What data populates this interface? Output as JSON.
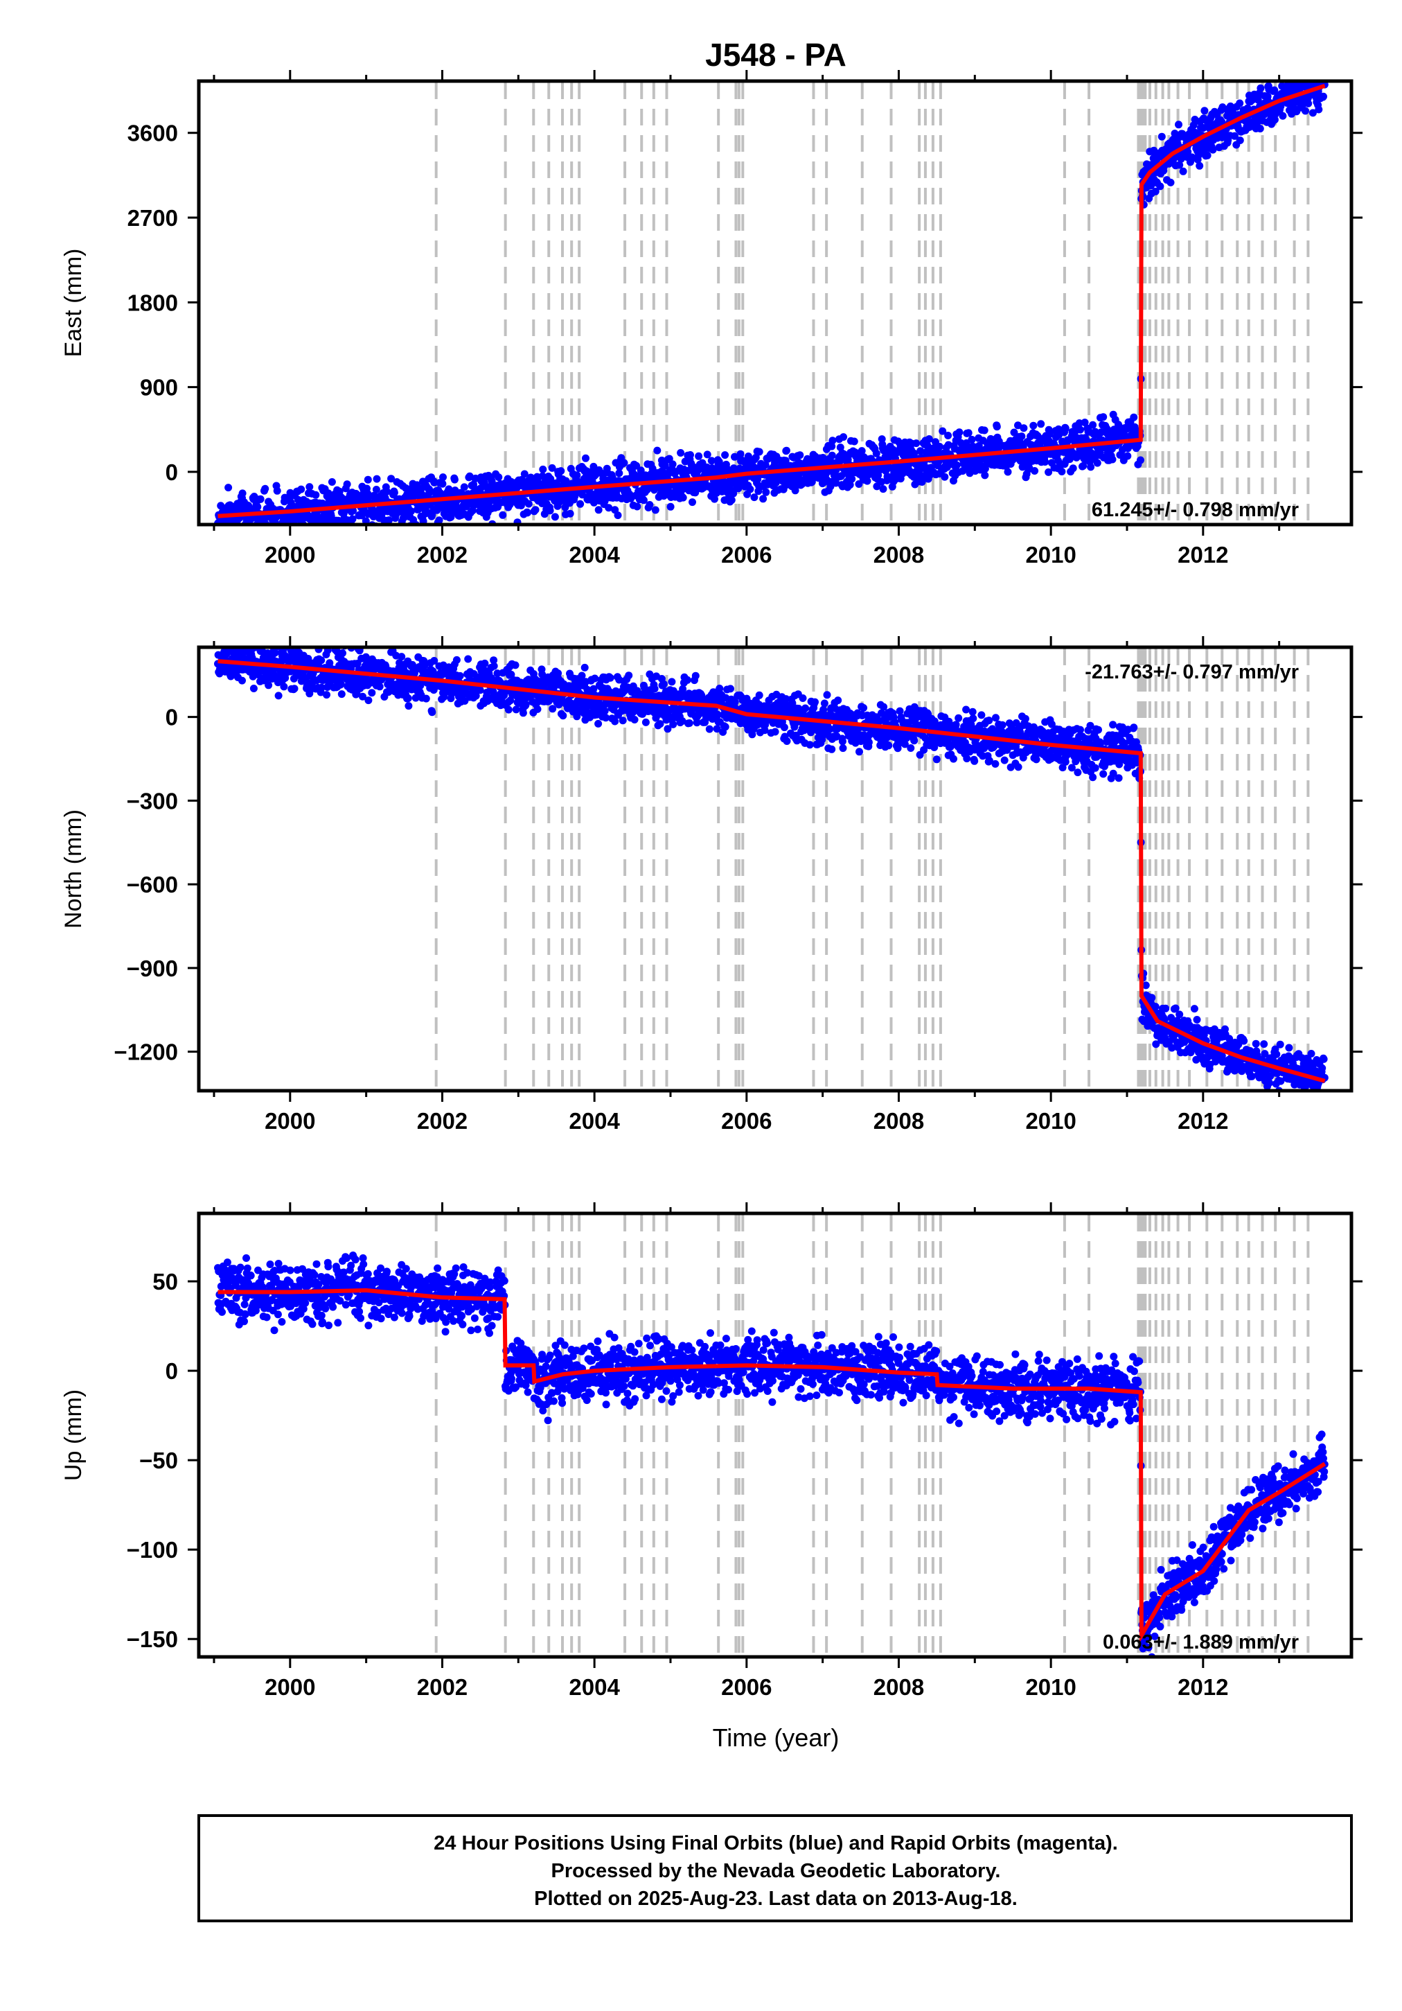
{
  "title": "J548 - PA",
  "xlabel": "Time (year)",
  "footer": [
    "24 Hour Positions Using Final Orbits (blue) and Rapid Orbits (magenta).",
    "Processed by the Nevada Geodetic Laboratory.",
    "Plotted on 2025-Aug-23. Last data on 2013-Aug-18."
  ],
  "colors": {
    "final_orbits": "#0000ff",
    "rapid_orbits": "#ff00ff",
    "model": "#ff0000",
    "step_lines": "#c0c0c0",
    "axes": "#000000"
  },
  "chart_data": [
    {
      "type": "scatter",
      "ylabel": "East (mm)",
      "rate_text": "61.245+/- 0.798 mm/yr",
      "xlim": [
        1998.8,
        2013.95
      ],
      "ylim": [
        -560,
        4150
      ],
      "x_ticks": [
        2000,
        2002,
        2004,
        2006,
        2008,
        2010,
        2012
      ],
      "y_ticks": [
        0,
        900,
        1800,
        2700,
        3600
      ],
      "y_tick_labels": [
        "0",
        "900",
        "1800",
        "2700",
        "3600"
      ],
      "series": [
        {
          "values": [
            [
              1999.05,
              -470
            ],
            [
              2000,
              -420
            ],
            [
              2002,
              -290
            ],
            [
              2004,
              -160
            ],
            [
              2005.6,
              -60
            ],
            [
              2006,
              -20
            ],
            [
              2008,
              110
            ],
            [
              2010,
              250
            ],
            [
              2011.18,
              340
            ],
            [
              2011.19,
              3050
            ],
            [
              2011.3,
              3180
            ],
            [
              2011.6,
              3380
            ],
            [
              2012,
              3560
            ],
            [
              2012.5,
              3760
            ],
            [
              2013,
              3940
            ],
            [
              2013.6,
              4100
            ]
          ]
        }
      ],
      "step_epochs": [
        2001.92,
        2002.83,
        2003.2,
        2003.4,
        2003.58,
        2003.7,
        2003.8,
        2004.4,
        2004.62,
        2004.78,
        2004.95,
        2005.63,
        2005.86,
        2005.9,
        2005.95,
        2006.88,
        2007.05,
        2007.52,
        2007.9,
        2008.27,
        2008.35,
        2008.45,
        2008.55,
        2010.18,
        2010.5,
        2011.15,
        2011.18,
        2011.21,
        2011.24,
        2011.3,
        2011.38,
        2011.47,
        2011.55,
        2011.67,
        2011.82,
        2012.05,
        2012.25,
        2012.45,
        2012.6,
        2012.78,
        2012.95,
        2013.2,
        2013.38
      ]
    },
    {
      "type": "scatter",
      "ylabel": "North (mm)",
      "rate_text": "-21.763+/- 0.797 mm/yr",
      "xlim": [
        1998.8,
        2013.95
      ],
      "ylim": [
        -1340,
        250
      ],
      "x_ticks": [
        2000,
        2002,
        2004,
        2006,
        2008,
        2010,
        2012
      ],
      "y_ticks": [
        -1200,
        -900,
        -600,
        -300,
        0
      ],
      "y_tick_labels": [
        "−1200",
        "−900",
        "−600",
        "−300",
        "0"
      ],
      "series": [
        {
          "values": [
            [
              1999.05,
              200
            ],
            [
              2000,
              180
            ],
            [
              2002,
              130
            ],
            [
              2004,
              70
            ],
            [
              2005.6,
              40
            ],
            [
              2006,
              10
            ],
            [
              2008,
              -40
            ],
            [
              2010,
              -100
            ],
            [
              2011.18,
              -130
            ],
            [
              2011.19,
              -1000
            ],
            [
              2011.4,
              -1090
            ],
            [
              2012,
              -1170
            ],
            [
              2012.5,
              -1220
            ],
            [
              2013,
              -1260
            ],
            [
              2013.6,
              -1305
            ]
          ]
        }
      ],
      "step_epochs": [
        2001.92,
        2002.83,
        2003.2,
        2003.4,
        2003.58,
        2003.7,
        2003.8,
        2004.4,
        2004.62,
        2004.78,
        2004.95,
        2005.63,
        2005.86,
        2005.9,
        2005.95,
        2006.88,
        2007.05,
        2007.52,
        2007.9,
        2008.27,
        2008.35,
        2008.45,
        2008.55,
        2010.18,
        2010.5,
        2011.15,
        2011.18,
        2011.21,
        2011.24,
        2011.3,
        2011.38,
        2011.47,
        2011.55,
        2011.67,
        2011.82,
        2012.05,
        2012.25,
        2012.45,
        2012.6,
        2012.78,
        2012.95,
        2013.2,
        2013.38
      ]
    },
    {
      "type": "scatter",
      "ylabel": "Up (mm)",
      "rate_text": "0.063+/- 1.889 mm/yr",
      "xlim": [
        1998.8,
        2013.95
      ],
      "ylim": [
        -160,
        88
      ],
      "x_ticks": [
        2000,
        2002,
        2004,
        2006,
        2008,
        2010,
        2012
      ],
      "y_ticks": [
        -150,
        -100,
        -50,
        0,
        50
      ],
      "y_tick_labels": [
        "−150",
        "−100",
        "−50",
        "0",
        "50"
      ],
      "series": [
        {
          "values": [
            [
              1999.05,
              44
            ],
            [
              2000,
              44
            ],
            [
              2001,
              45
            ],
            [
              2002,
              41
            ],
            [
              2002.82,
              40
            ],
            [
              2002.83,
              3
            ],
            [
              2003.2,
              3
            ],
            [
              2003.21,
              -6
            ],
            [
              2003.58,
              -2
            ],
            [
              2004,
              0
            ],
            [
              2005,
              2
            ],
            [
              2006,
              3
            ],
            [
              2007,
              2
            ],
            [
              2008,
              -1
            ],
            [
              2008.5,
              -2
            ],
            [
              2008.51,
              -8
            ],
            [
              2009.5,
              -10
            ],
            [
              2010.5,
              -10
            ],
            [
              2011.18,
              -12
            ],
            [
              2011.19,
              -148
            ],
            [
              2011.5,
              -125
            ],
            [
              2012,
              -112
            ],
            [
              2012.3,
              -95
            ],
            [
              2012.6,
              -78
            ],
            [
              2013,
              -68
            ],
            [
              2013.6,
              -52
            ]
          ]
        }
      ],
      "step_epochs": [
        2001.92,
        2002.83,
        2003.2,
        2003.4,
        2003.58,
        2003.7,
        2003.8,
        2004.4,
        2004.62,
        2004.78,
        2004.95,
        2005.63,
        2005.86,
        2005.9,
        2005.95,
        2006.88,
        2007.05,
        2007.52,
        2007.9,
        2008.27,
        2008.35,
        2008.45,
        2008.55,
        2010.18,
        2010.5,
        2011.15,
        2011.18,
        2011.21,
        2011.24,
        2011.3,
        2011.38,
        2011.47,
        2011.55,
        2011.67,
        2011.82,
        2012.05,
        2012.25,
        2012.45,
        2012.6,
        2012.78,
        2012.95,
        2013.2,
        2013.38
      ]
    }
  ]
}
